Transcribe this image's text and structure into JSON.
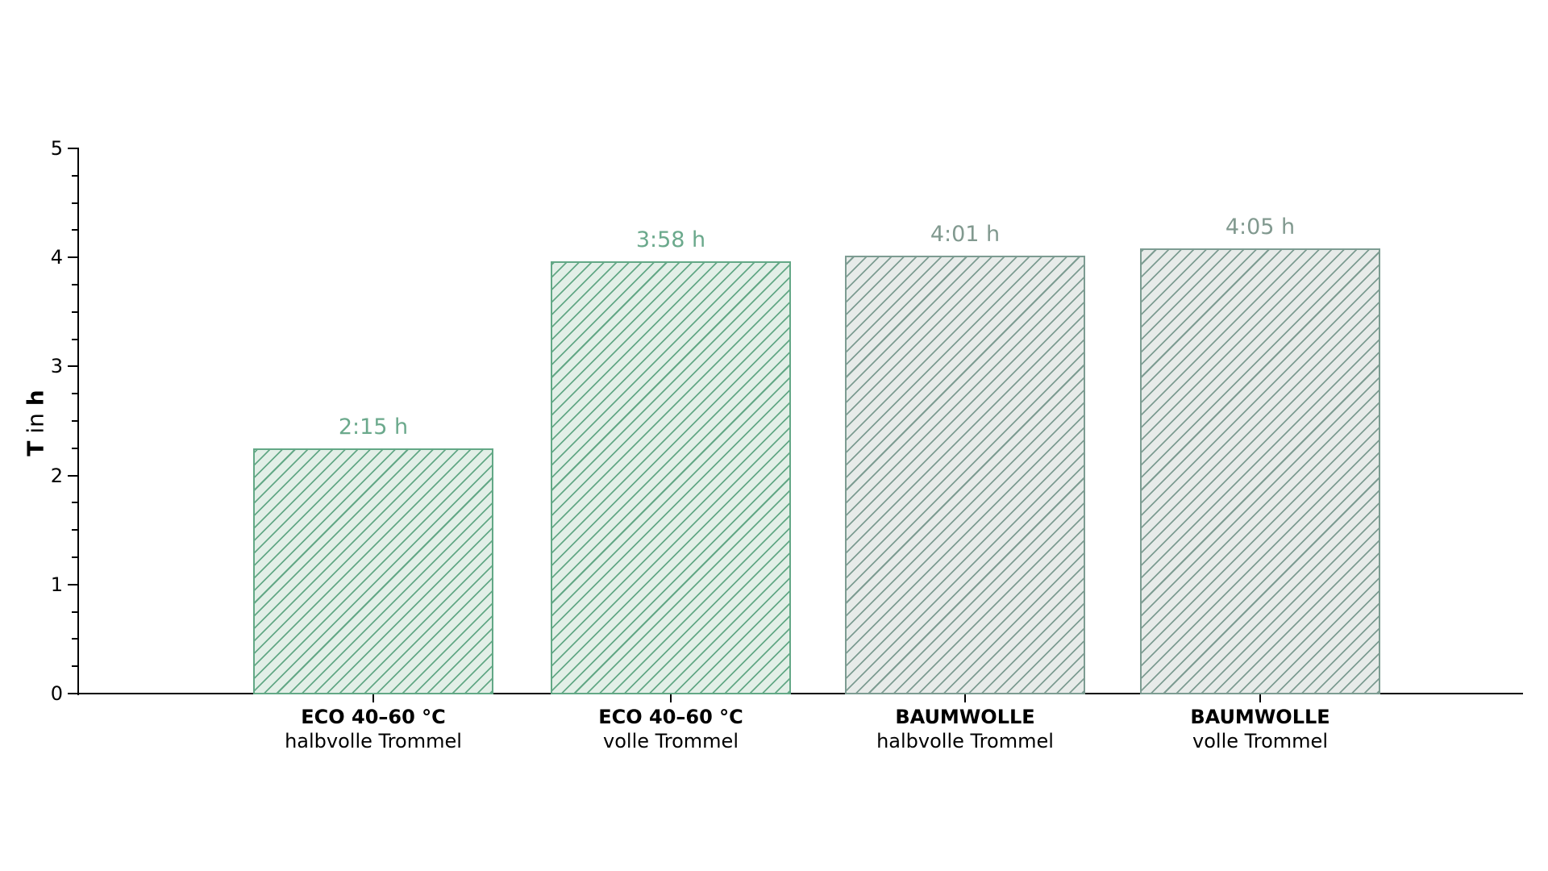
{
  "chart_data": {
    "type": "bar",
    "title": "",
    "ylabel": "T in h",
    "ylabel_parts": {
      "pre": "T",
      "mid": " in ",
      "post": "h"
    },
    "ylim": [
      0,
      5
    ],
    "yticks": [
      0,
      1,
      2,
      3,
      4,
      5
    ],
    "minor_tick_step": 0.25,
    "grid": false,
    "legend": false,
    "hatch": "/",
    "categories": [
      {
        "line1": "ECO 40–60 °C",
        "line2": "halbvolle Trommel"
      },
      {
        "line1": "ECO 40–60 °C",
        "line2": "volle Trommel"
      },
      {
        "line1": "BAUMWOLLE",
        "line2": "halbvolle Trommel"
      },
      {
        "line1": "BAUMWOLLE",
        "line2": "volle Trommel"
      }
    ],
    "values": [
      2.25,
      3.9667,
      4.0167,
      4.0833
    ],
    "bar_labels": [
      "2:15 h",
      "3:58 h",
      "4:01 h",
      "4:05 h"
    ],
    "bar_styles": [
      "green",
      "green",
      "gray",
      "gray"
    ]
  },
  "colors": {
    "green_edge": "#63a886",
    "green_fill": "#e2efe7",
    "green_label": "#6ba98c",
    "gray_edge": "#7d9c92",
    "gray_fill": "#e7ebe9",
    "gray_label": "#81998f",
    "axis": "#000000"
  }
}
